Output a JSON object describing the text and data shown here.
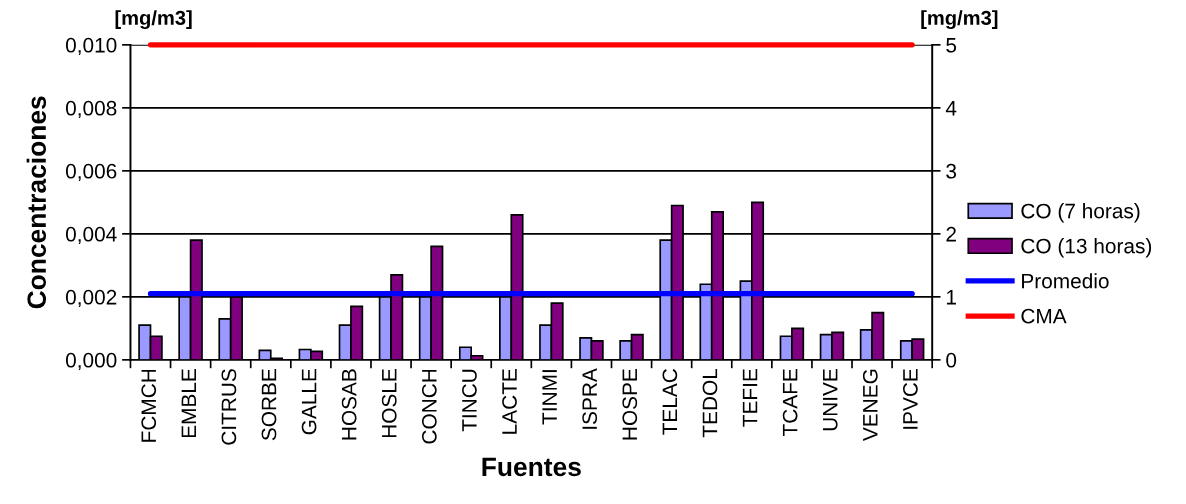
{
  "chart_data": {
    "type": "bar",
    "xlabel": "Fuentes",
    "ylabel": "Concentraciones",
    "annotations": [
      "[mg/m3]",
      "[mg/m3]"
    ],
    "categories": [
      "FCMCH",
      "EMBLE",
      "CITRUS",
      "SORBE",
      "GALLE",
      "HOSAB",
      "HOSLE",
      "CONCH",
      "TINCU",
      "LACTE",
      "TINMI",
      "ISPRA",
      "HOSPE",
      "TELAC",
      "TEDOL",
      "TEFIE",
      "TCAFE",
      "UNIVE",
      "VENEG",
      "IPVCE"
    ],
    "series": [
      {
        "name": "CO (7 horas)",
        "color": "#9999ff",
        "values": [
          0.0011,
          0.002,
          0.0013,
          0.0003,
          0.00033,
          0.0011,
          0.002,
          0.002,
          0.0004,
          0.002,
          0.0011,
          0.0007,
          0.0006,
          0.0038,
          0.0024,
          0.0025,
          0.00075,
          0.0008,
          0.00095,
          0.0006
        ]
      },
      {
        "name": "CO (13 horas)",
        "color": "#800080",
        "values": [
          0.00075,
          0.0038,
          0.002,
          5e-05,
          0.00027,
          0.0017,
          0.0027,
          0.0036,
          0.00013,
          0.0046,
          0.0018,
          0.0006,
          0.0008,
          0.0049,
          0.0047,
          0.005,
          0.001,
          0.00087,
          0.0015,
          0.00066
        ]
      },
      {
        "name": "Promedio",
        "type": "line",
        "axis": "y2",
        "color": "#0000ff",
        "values": [
          1.05,
          1.05,
          1.05,
          1.05,
          1.05,
          1.05,
          1.05,
          1.05,
          1.05,
          1.05,
          1.05,
          1.05,
          1.05,
          1.05,
          1.05,
          1.05,
          1.05,
          1.05,
          1.05,
          1.05
        ]
      },
      {
        "name": "CMA",
        "type": "line",
        "axis": "y2",
        "color": "#ff0000",
        "values": [
          5,
          5,
          5,
          5,
          5,
          5,
          5,
          5,
          5,
          5,
          5,
          5,
          5,
          5,
          5,
          5,
          5,
          5,
          5,
          5
        ]
      }
    ],
    "ylim": [
      0,
      0.01
    ],
    "yticks": [
      {
        "value": 0,
        "label": "0,000"
      },
      {
        "value": 0.002,
        "label": "0,002"
      },
      {
        "value": 0.004,
        "label": "0,004"
      },
      {
        "value": 0.006,
        "label": "0,006"
      },
      {
        "value": 0.008,
        "label": "0,008"
      },
      {
        "value": 0.01,
        "label": "0,010"
      }
    ],
    "y2lim": [
      0,
      5
    ],
    "y2ticks": [
      0,
      1,
      2,
      3,
      4,
      5
    ],
    "grid": "y",
    "legend": "right"
  }
}
